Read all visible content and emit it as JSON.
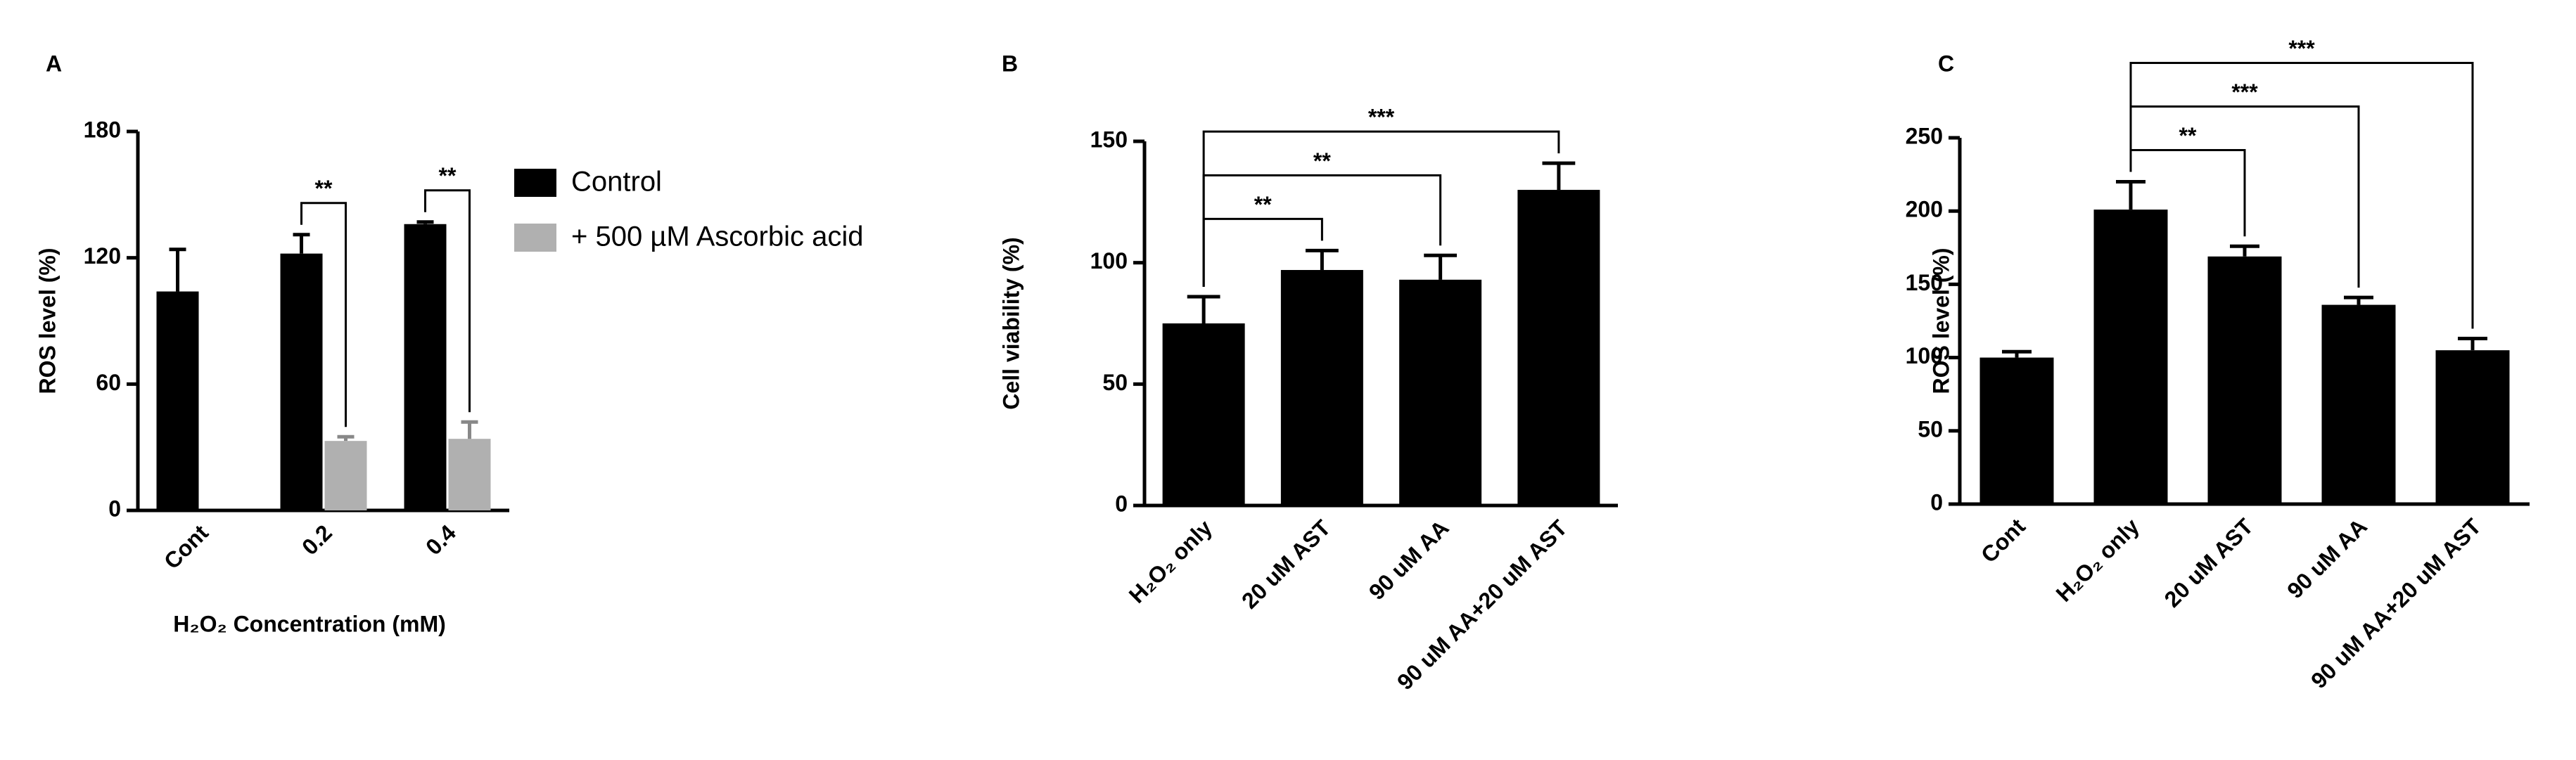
{
  "chart_data": [
    {
      "type": "bar",
      "panel": "A",
      "y_label": "ROS level (%)",
      "x_label": "H₂O₂ Concentration (mM)",
      "categories": [
        "Cont",
        "0.2",
        "0.4"
      ],
      "series": [
        {
          "name": "Control",
          "color": "#000000",
          "values": [
            104,
            122,
            136
          ],
          "errors": [
            20,
            9,
            1
          ]
        },
        {
          "name": "+ 500 µM Ascorbic acid",
          "color": "#b0b0b0",
          "values": [
            null,
            33,
            34
          ],
          "errors": [
            null,
            2,
            8
          ]
        }
      ],
      "ylim": [
        0,
        180
      ],
      "yticks": [
        0,
        60,
        120,
        180
      ],
      "grid": false,
      "annotations": [
        {
          "text": "**",
          "category": "0.2"
        },
        {
          "text": "**",
          "category": "0.4"
        }
      ]
    },
    {
      "type": "bar",
      "panel": "B",
      "y_label": "Cell viability (%)",
      "categories": [
        "H₂O₂ only",
        "20 uM AST",
        "90 uM AA",
        "90 uM AA+20 uM AST"
      ],
      "values": [
        75,
        97,
        93,
        130
      ],
      "errors": [
        11,
        8,
        10,
        11
      ],
      "color": "#000000",
      "ylim": [
        0,
        150
      ],
      "yticks": [
        0,
        50,
        100,
        150
      ],
      "grid": false,
      "annotations": [
        {
          "text": "**",
          "between": [
            "H₂O₂ only",
            "20 uM AST"
          ]
        },
        {
          "text": "**",
          "between": [
            "H₂O₂ only",
            "90 uM AA"
          ]
        },
        {
          "text": "***",
          "between": [
            "H₂O₂ only",
            "90 uM AA+20 uM AST"
          ]
        }
      ]
    },
    {
      "type": "bar",
      "panel": "C",
      "y_label": "ROS level (%)",
      "categories": [
        "Cont",
        "H₂O₂ only",
        "20 uM AST",
        "90 uM AA",
        "90 uM AA+20 uM AST"
      ],
      "values": [
        100,
        201,
        169,
        136,
        105
      ],
      "errors": [
        4,
        19,
        7,
        5,
        8
      ],
      "color": "#000000",
      "ylim": [
        0,
        250
      ],
      "yticks": [
        0,
        50,
        100,
        150,
        200,
        250
      ],
      "grid": false,
      "annotations": [
        {
          "text": "**",
          "between": [
            "H₂O₂ only",
            "20 uM AST"
          ]
        },
        {
          "text": "***",
          "between": [
            "H₂O₂ only",
            "90 uM AA"
          ]
        },
        {
          "text": "***",
          "between": [
            "H₂O₂ only",
            "90 uM AA+20 uM AST"
          ]
        }
      ]
    }
  ]
}
